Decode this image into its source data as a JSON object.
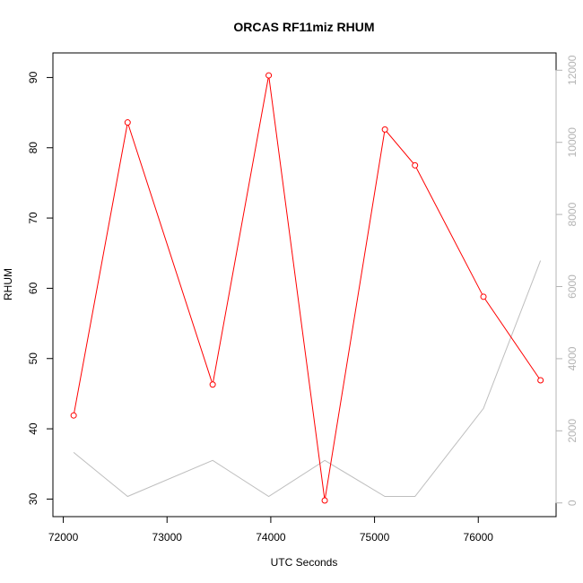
{
  "chart_data": {
    "type": "line",
    "title": "ORCAS RF11miz RHUM",
    "xlabel": "UTC Seconds",
    "ylabel": "RHUM",
    "xlim": [
      71900,
      76750
    ],
    "ylim": [
      27.5,
      93.5
    ],
    "y2lim": [
      -380,
      12480
    ],
    "x_ticks": [
      72000,
      73000,
      74000,
      75000,
      76000
    ],
    "y_ticks": [
      30,
      40,
      50,
      60,
      70,
      80,
      90
    ],
    "y2_ticks": [
      0,
      2000,
      4000,
      6000,
      8000,
      10000,
      12000
    ],
    "grid": false,
    "series": [
      {
        "axis": "left",
        "color": "#ff0000",
        "markers": "open-circle",
        "x": [
          72100,
          72620,
          73440,
          73980,
          74520,
          75100,
          75390,
          76050,
          76600
        ],
        "values": [
          41.9,
          83.6,
          46.3,
          90.3,
          29.8,
          82.6,
          77.5,
          58.8,
          46.9
        ]
      },
      {
        "axis": "right",
        "color": "#bebebe",
        "markers": "none",
        "x": [
          72100,
          72620,
          73440,
          73980,
          74520,
          75100,
          75390,
          76050,
          76600
        ],
        "values": [
          1400,
          180,
          1180,
          180,
          1180,
          180,
          180,
          2620,
          6720
        ]
      }
    ]
  }
}
